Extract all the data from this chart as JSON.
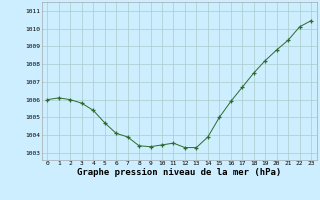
{
  "x": [
    0,
    1,
    2,
    3,
    4,
    5,
    6,
    7,
    8,
    9,
    10,
    11,
    12,
    13,
    14,
    15,
    16,
    17,
    18,
    19,
    20,
    21,
    22,
    23
  ],
  "y": [
    1006.0,
    1006.1,
    1006.0,
    1005.8,
    1005.4,
    1004.7,
    1004.1,
    1003.9,
    1003.4,
    1003.35,
    1003.45,
    1003.55,
    1003.3,
    1003.3,
    1003.9,
    1005.0,
    1005.9,
    1006.7,
    1007.5,
    1008.2,
    1008.8,
    1009.35,
    1010.1,
    1010.45
  ],
  "line_color": "#2d6a2d",
  "marker": "+",
  "marker_color": "#2d6a2d",
  "background_color": "#cceeff",
  "grid_color": "#aacccc",
  "xlabel": "Graphe pression niveau de la mer (hPa)",
  "xlabel_fontsize": 6.5,
  "ylabel_ticks": [
    1003,
    1004,
    1005,
    1006,
    1007,
    1008,
    1009,
    1010,
    1011
  ],
  "ylim": [
    1002.6,
    1011.5
  ],
  "xlim": [
    -0.5,
    23.5
  ]
}
